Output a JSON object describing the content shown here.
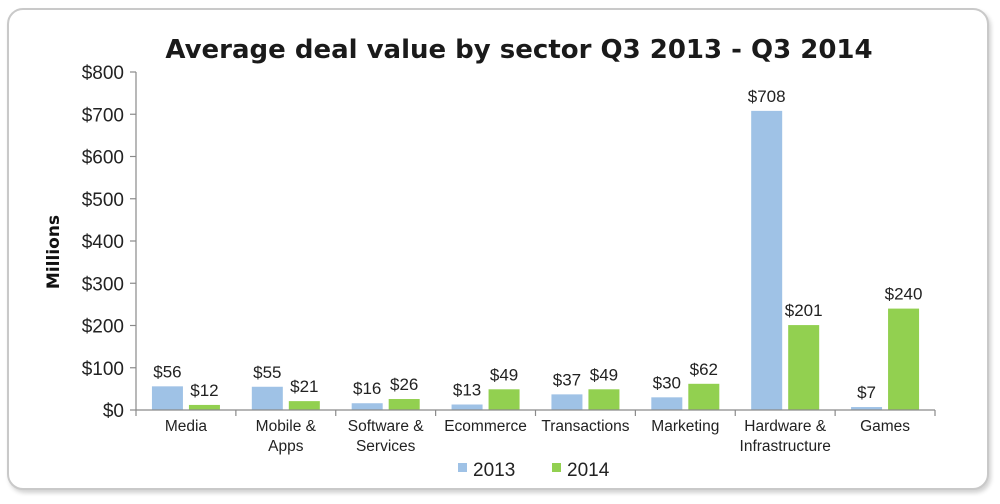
{
  "chart_data": {
    "type": "bar",
    "title": "Average deal value by sector Q3 2013 - Q3 2014",
    "xlabel": "",
    "ylabel": "Millions",
    "ylim": [
      0,
      800
    ],
    "yticks": [
      0,
      100,
      200,
      300,
      400,
      500,
      600,
      700,
      800
    ],
    "ytick_labels": [
      "$0",
      "$100",
      "$200",
      "$300",
      "$400",
      "$500",
      "$600",
      "$700",
      "$800"
    ],
    "categories": [
      [
        "Media"
      ],
      [
        "Mobile &",
        "Apps"
      ],
      [
        "Software &",
        "Services"
      ],
      [
        "Ecommerce"
      ],
      [
        "Transactions"
      ],
      [
        "Marketing"
      ],
      [
        "Hardware &",
        "Infrastructure"
      ],
      [
        "Games"
      ]
    ],
    "series": [
      {
        "name": "2013",
        "color": "#9fc2e6",
        "values": [
          56,
          55,
          16,
          13,
          37,
          30,
          708,
          7
        ],
        "labels": [
          "$56",
          "$55",
          "$16",
          "$13",
          "$37",
          "$30",
          "$708",
          "$7"
        ]
      },
      {
        "name": "2014",
        "color": "#92d050",
        "values": [
          12,
          21,
          26,
          49,
          49,
          62,
          201,
          240
        ],
        "labels": [
          "$12",
          "$21",
          "$26",
          "$49",
          "$49",
          "$62",
          "$201",
          "$240"
        ]
      }
    ],
    "legend": "bottom",
    "grid": false
  }
}
